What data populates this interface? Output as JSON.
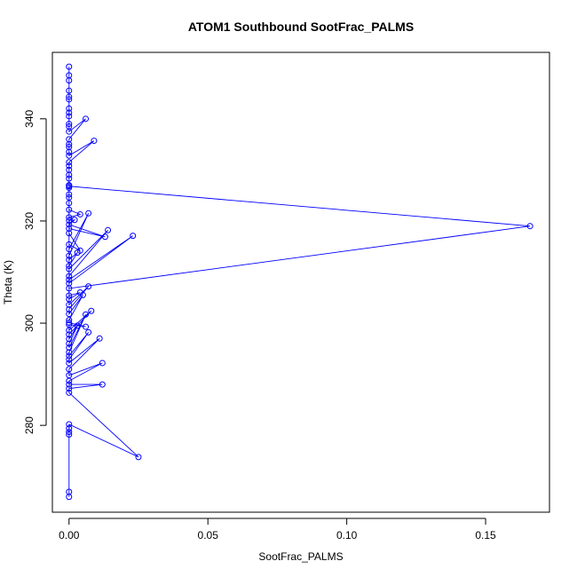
{
  "chart_data": {
    "type": "line",
    "title": "ATOM1 Southbound SootFrac_PALMS",
    "xlabel": "SootFrac_PALMS",
    "ylabel": "Theta (K)",
    "xlim": [
      -0.006,
      0.173
    ],
    "ylim": [
      263,
      353
    ],
    "x_ticks": [
      0.0,
      0.05,
      0.1,
      0.15
    ],
    "x_tick_labels": [
      "0.00",
      "0.05",
      "0.10",
      "0.15"
    ],
    "y_ticks": [
      280,
      300,
      320,
      340
    ],
    "y_tick_labels": [
      "280",
      "300",
      "320",
      "340"
    ],
    "grid": false,
    "legend": "none",
    "series_color": "#0000ff",
    "series": [
      {
        "marker": "open-circle",
        "x": [
          0.0,
          0.0,
          0.0,
          0.0,
          0.0,
          0.0,
          0.0,
          0.0,
          0.0,
          0.0,
          0.0,
          0.0,
          0.006,
          0.0,
          0.0,
          0.0,
          0.0,
          0.0,
          0.009,
          0.0,
          0.0,
          0.0,
          0.0,
          0.0,
          0.0,
          0.0,
          0.0,
          0.0,
          0.0,
          0.0,
          0.004,
          0.0,
          0.0,
          0.002,
          0.0,
          0.013,
          0.0,
          0.0,
          0.004,
          0.0,
          0.0,
          0.007,
          0.0,
          0.0,
          0.003,
          0.0,
          0.0,
          0.014,
          0.0,
          0.0,
          0.023,
          0.0,
          0.0,
          0.166,
          0.0,
          0.0,
          0.004,
          0.0,
          0.0,
          0.007,
          0.0,
          0.0,
          0.005,
          0.0,
          0.0,
          0.006,
          0.0,
          0.0,
          0.008,
          0.0,
          0.0,
          0.003,
          0.0,
          0.0,
          0.006,
          0.0,
          0.0,
          0.007,
          0.0,
          0.0,
          0.011,
          0.0,
          0.0,
          0.012,
          0.0,
          0.0,
          0.012,
          0.0,
          0.0,
          0.025,
          0.0,
          0.0,
          0.0,
          0.0,
          0.0,
          0.0
        ],
        "y": [
          350.2,
          348.5,
          347.5,
          345.5,
          344.3,
          343.8,
          342.0,
          341.2,
          340.5,
          339.0,
          338.5,
          337.5,
          340.0,
          336.0,
          335.0,
          334.5,
          333.5,
          332.8,
          335.7,
          331.5,
          330.8,
          330.0,
          329.0,
          328.3,
          327.0,
          326.5,
          325.2,
          324.6,
          323.5,
          322.2,
          321.3,
          320.7,
          320.1,
          320.2,
          319.3,
          316.9,
          318.5,
          317.6,
          314.2,
          315.4,
          314.5,
          321.5,
          313.2,
          312.4,
          313.8,
          311.2,
          310.6,
          318.2,
          309.2,
          308.5,
          317.1,
          307.8,
          306.8,
          319.0,
          326.8,
          305.4,
          306.0,
          304.7,
          303.6,
          307.2,
          302.7,
          301.8,
          305.5,
          300.6,
          300.1,
          299.3,
          299.7,
          298.6,
          302.4,
          297.8,
          296.9,
          299.5,
          296.0,
          295.2,
          301.7,
          294.3,
          293.6,
          298.2,
          292.9,
          292.2,
          297.0,
          291.0,
          289.8,
          292.2,
          288.7,
          288.0,
          288.0,
          287.2,
          286.4,
          273.8,
          280.2,
          279.4,
          278.7,
          278.2,
          266.0,
          267.0
        ]
      }
    ]
  }
}
